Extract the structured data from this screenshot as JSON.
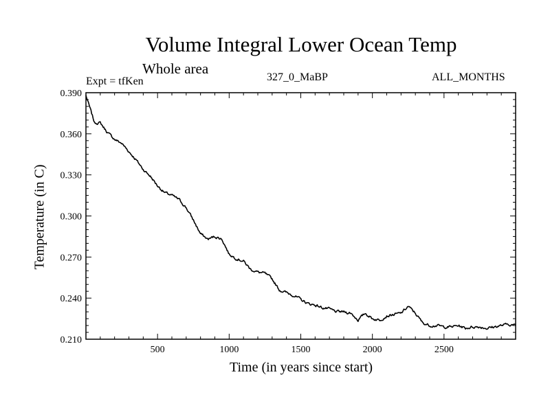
{
  "chart_data": {
    "type": "line",
    "title": "Volume Integral Lower Ocean Temp",
    "subtitle": "Whole area",
    "experiment_label": "Expt = tfKen",
    "center_label": "327_0_MaBP",
    "right_label": "ALL_MONTHS",
    "xlabel": "Time (in years since start)",
    "ylabel": "Temperature (in C)",
    "xlim": [
      0,
      3000
    ],
    "ylim": [
      0.21,
      0.39
    ],
    "x_ticks": [
      500,
      1000,
      1500,
      2000,
      2500
    ],
    "x_tick_labels": [
      "500",
      "1000",
      "1500",
      "2000",
      "2500"
    ],
    "y_ticks": [
      0.21,
      0.24,
      0.27,
      0.3,
      0.33,
      0.36,
      0.39
    ],
    "y_tick_labels": [
      "0.210",
      "0.240",
      "0.270",
      "0.300",
      "0.330",
      "0.360",
      "0.390"
    ],
    "grid": false,
    "line_color": "#000000",
    "series": [
      {
        "x": [
          0,
          30,
          60,
          100,
          150,
          200,
          250,
          300,
          350,
          400,
          450,
          500,
          550,
          600,
          650,
          700,
          750,
          800,
          850,
          900,
          950,
          1000,
          1050,
          1100,
          1150,
          1200,
          1250,
          1300,
          1350,
          1400,
          1450,
          1500,
          1550,
          1600,
          1650,
          1700,
          1750,
          1800,
          1850,
          1900,
          1950,
          2000,
          2050,
          2100,
          2150,
          2200,
          2250,
          2300,
          2350,
          2400,
          2450,
          2500,
          2550,
          2600,
          2650,
          2700,
          2750,
          2800,
          2850,
          2900,
          2950,
          3000
        ],
        "y": [
          0.388,
          0.378,
          0.368,
          0.368,
          0.361,
          0.356,
          0.353,
          0.347,
          0.341,
          0.334,
          0.329,
          0.322,
          0.317,
          0.315,
          0.312,
          0.306,
          0.297,
          0.287,
          0.283,
          0.285,
          0.283,
          0.272,
          0.269,
          0.267,
          0.261,
          0.259,
          0.258,
          0.254,
          0.246,
          0.244,
          0.242,
          0.239,
          0.236,
          0.235,
          0.233,
          0.232,
          0.23,
          0.23,
          0.229,
          0.224,
          0.229,
          0.225,
          0.224,
          0.227,
          0.228,
          0.229,
          0.234,
          0.229,
          0.222,
          0.22,
          0.22,
          0.219,
          0.219,
          0.22,
          0.218,
          0.219,
          0.219,
          0.218,
          0.219,
          0.22,
          0.221,
          0.22
        ]
      }
    ]
  }
}
